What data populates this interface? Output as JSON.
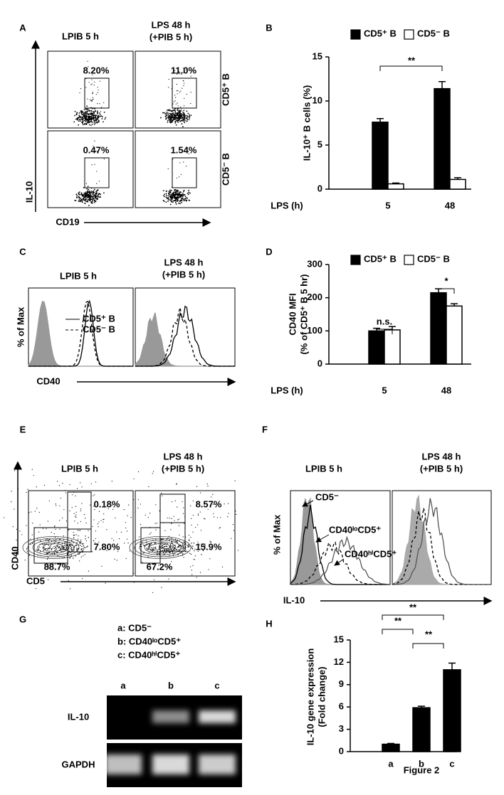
{
  "panels": {
    "A": {
      "label": "A",
      "columns": [
        [
          "LPIB 5 h"
        ],
        [
          "LPS 48 h",
          "(+PIB 5 h)"
        ]
      ],
      "rows": [
        "CD5⁺ B",
        "CD5⁻ B"
      ],
      "percentages": [
        "8.20%",
        "11.0%",
        "0.47%",
        "1.54%"
      ],
      "y_axis": "IL-10",
      "x_axis": "CD19"
    },
    "B": {
      "label": "B",
      "type": "bar",
      "y_label": "IL-10⁺ B cells (%)",
      "x_label": "LPS (h)",
      "categories": [
        "5",
        "48"
      ],
      "series": [
        {
          "name": "CD5⁺ B",
          "color": "#000000",
          "values": [
            7.6,
            11.4
          ],
          "errors": [
            0.4,
            0.8
          ]
        },
        {
          "name": "CD5⁻ B",
          "color": "#ffffff",
          "values": [
            0.6,
            1.1
          ],
          "errors": [
            0.1,
            0.2
          ]
        }
      ],
      "ylim": [
        0,
        15
      ],
      "yticks": [
        0,
        5,
        10,
        15
      ],
      "significance": [
        "**"
      ]
    },
    "C": {
      "label": "C",
      "columns": [
        [
          "LPIB 5 h"
        ],
        [
          "LPS 48 h",
          "(+PIB 5 h)"
        ]
      ],
      "legend": [
        "CD5⁺ B",
        "CD5⁻ B"
      ],
      "y_axis": "% of Max",
      "x_axis": "CD40"
    },
    "D": {
      "label": "D",
      "type": "bar",
      "y_label": [
        "CD40 MFI",
        "(% of CD5⁺ B 5 hr)"
      ],
      "x_label": "LPS (h)",
      "categories": [
        "5",
        "48"
      ],
      "series": [
        {
          "name": "CD5⁺ B",
          "color": "#000000",
          "values": [
            100,
            215
          ],
          "errors": [
            8,
            12
          ]
        },
        {
          "name": "CD5⁻ B",
          "color": "#ffffff",
          "values": [
            103,
            175
          ],
          "errors": [
            10,
            7
          ]
        }
      ],
      "ylim": [
        0,
        300
      ],
      "yticks": [
        0,
        100,
        200,
        300
      ],
      "significance": [
        "n.s.",
        "*"
      ]
    },
    "E": {
      "label": "E",
      "columns": [
        [
          "LPIB 5 h"
        ],
        [
          "LPS 48 h",
          "(+PIB 5 h)"
        ]
      ],
      "percentages": [
        [
          "0.18%",
          "7.80%",
          "88.7%"
        ],
        [
          "8.57%",
          "15.9%",
          "67.2%"
        ]
      ],
      "y_axis": "CD40",
      "x_axis": "CD5"
    },
    "F": {
      "label": "F",
      "columns": [
        [
          "LPIB 5 h"
        ],
        [
          "LPS 48 h",
          "(+PIB 5 h)"
        ]
      ],
      "annotations": [
        "CD5⁻",
        "CD40ˡᵒCD5⁺",
        "CD40ʰⁱCD5⁺"
      ],
      "y_axis": "% of Max",
      "x_axis": "IL-10"
    },
    "G": {
      "label": "G",
      "legend": [
        "a: CD5⁻",
        "b: CD40ˡᵒCD5⁺",
        "c: CD40ʰⁱCD5⁺"
      ],
      "lanes": [
        "a",
        "b",
        "c"
      ],
      "rows": [
        "IL-10",
        "GAPDH"
      ]
    },
    "H": {
      "label": "H",
      "type": "bar",
      "y_label": [
        "IL-10 gene expression",
        "(Fold change)"
      ],
      "categories": [
        "a",
        "b",
        "c"
      ],
      "series": [
        {
          "name": null,
          "color": "#000000",
          "values": [
            1.0,
            5.9,
            11.0
          ],
          "errors": [
            0.1,
            0.2,
            0.9
          ]
        }
      ],
      "ylim": [
        0,
        15
      ],
      "yticks": [
        0,
        3,
        6,
        9,
        12,
        15
      ],
      "significance": [
        "**",
        "**",
        "**"
      ]
    }
  },
  "figure_label": "Figure 2"
}
